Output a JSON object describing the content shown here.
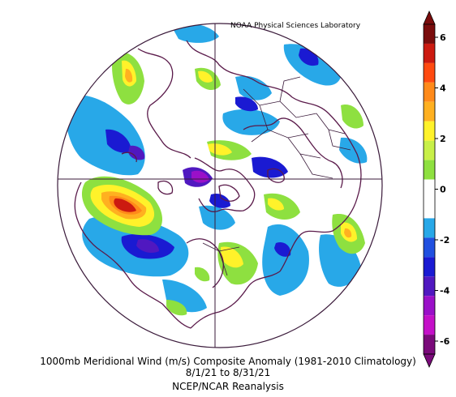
{
  "header": {
    "lab_name": "NOAA Physical Sciences Laboratory"
  },
  "caption": {
    "line1": "1000mb Meridional Wind (m/s) Composite Anomaly (1981-2010 Climatology)",
    "line2": "8/1/21  to  8/31/21",
    "line3": "NCEP/NCAR Reanalysis"
  },
  "colorbar": {
    "labels": [
      "6",
      "4",
      "2",
      "0",
      "-2",
      "-4",
      "-6"
    ],
    "colors": [
      "#7a0c0c",
      "#cc1a10",
      "#ff4a10",
      "#ff8a1a",
      "#ffb020",
      "#fff22a",
      "#c8f048",
      "#8ee040",
      "#ffffff",
      "#ffffff",
      "#28a8e8",
      "#2050e0",
      "#1a1ad2",
      "#5018c0",
      "#9a10c8",
      "#c410c8",
      "#7a0a7a"
    ]
  },
  "colors": {
    "coast": "#5a1a4a",
    "border": "#3a1a3a"
  }
}
